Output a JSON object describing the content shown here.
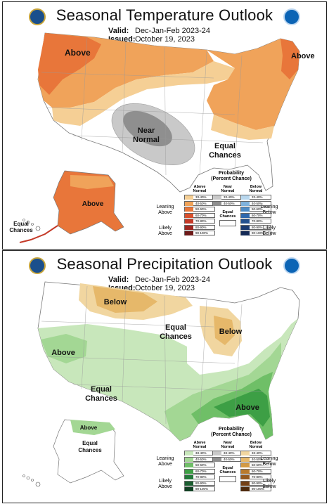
{
  "temperature": {
    "title": "Seasonal Temperature Outlook",
    "valid_label": "Valid:",
    "valid_value": "Dec-Jan-Feb 2023-24",
    "issued_label": "Issued:",
    "issued_value": "October 19, 2023",
    "map_labels": {
      "above_west": "Above",
      "above_northeast": "Above",
      "near_normal_1": "Near",
      "near_normal_2": "Normal",
      "equal_chances_1": "Equal",
      "equal_chances_2": "Chances",
      "above_alaska": "Above",
      "equal_chances_hawaii_1": "Equal",
      "equal_chances_hawaii_2": "Chances"
    },
    "legend": {
      "title_1": "Probability",
      "title_2": "(Percent Chance)",
      "above_head_1": "Above",
      "above_head_2": "Normal",
      "near_head_1": "Near",
      "near_head_2": "Normal",
      "below_head_1": "Below",
      "below_head_2": "Normal",
      "leaning_above_1": "Leaning",
      "leaning_above_2": "Above",
      "likely_above_1": "Likely",
      "likely_above_2": "Above",
      "leaning_below_1": "Leaning",
      "leaning_below_2": "Below",
      "likely_below_1": "Likely",
      "likely_below_2": "Below",
      "equal_chances_1": "Equal",
      "equal_chances_2": "Chances",
      "above": [
        "33-40%",
        "40-50%",
        "50-60%",
        "60-70%",
        "70-80%",
        "80-90%",
        "90-100%"
      ],
      "near": [
        "33-40%",
        "40-50%"
      ],
      "below": [
        "33-40%",
        "40-50%",
        "50-60%",
        "60-70%",
        "70-80%",
        "80-90%",
        "90-100%"
      ],
      "above_colors": [
        "#f5cf95",
        "#f0a35a",
        "#e8763a",
        "#d8502d",
        "#c43a28",
        "#9e2721",
        "#6e1a18"
      ],
      "near_colors": [
        "#c9c9c9",
        "#8f8f8f"
      ],
      "below_colors": [
        "#b8d7ee",
        "#7fb2dc",
        "#4e8cc6",
        "#2f68ad",
        "#23508f",
        "#1a3a72",
        "#142a56"
      ]
    }
  },
  "precipitation": {
    "title": "Seasonal Precipitation Outlook",
    "valid_label": "Valid:",
    "valid_value": "Dec-Jan-Feb 2023-24",
    "issued_label": "Issued:",
    "issued_value": "October 19, 2023",
    "map_labels": {
      "below_north": "Below",
      "below_greatlakes": "Below",
      "equal_chances_center_1": "Equal",
      "equal_chances_center_2": "Chances",
      "above_west": "Above",
      "equal_chances_sw_1": "Equal",
      "equal_chances_sw_2": "Chances",
      "above_southeast": "Above",
      "above_alaska": "Above",
      "equal_chances_alaska_1": "Equal",
      "equal_chances_alaska_2": "Chances"
    },
    "legend": {
      "title_1": "Probability",
      "title_2": "(Percent Chance)",
      "above_head_1": "Above",
      "above_head_2": "Normal",
      "near_head_1": "Near",
      "near_head_2": "Normal",
      "below_head_1": "Below",
      "below_head_2": "Normal",
      "leaning_above_1": "Leaning",
      "leaning_above_2": "Above",
      "likely_above_1": "Likely",
      "likely_above_2": "Above",
      "leaning_below_1": "Leaning",
      "leaning_below_2": "Below",
      "likely_below_1": "Likely",
      "likely_below_2": "Below",
      "equal_chances_1": "Equal",
      "equal_chances_2": "Chances",
      "above": [
        "33-40%",
        "40-50%",
        "50-60%",
        "60-70%",
        "70-80%",
        "80-90%",
        "90-100%"
      ],
      "near": [
        "33-40%",
        "40-50%"
      ],
      "below": [
        "33-40%",
        "40-50%",
        "50-60%",
        "60-70%",
        "70-80%",
        "80-90%",
        "90-100%"
      ],
      "above_colors": [
        "#c8e7bb",
        "#a3d794",
        "#6fbf67",
        "#3d9f45",
        "#22793a",
        "#1b5d30",
        "#114023"
      ],
      "near_colors": [
        "#c9c9c9",
        "#8f8f8f"
      ],
      "below_colors": [
        "#f1d6a0",
        "#e6b86a",
        "#d39a44",
        "#b87a2d",
        "#94591f",
        "#733f15",
        "#4d290c"
      ]
    }
  }
}
